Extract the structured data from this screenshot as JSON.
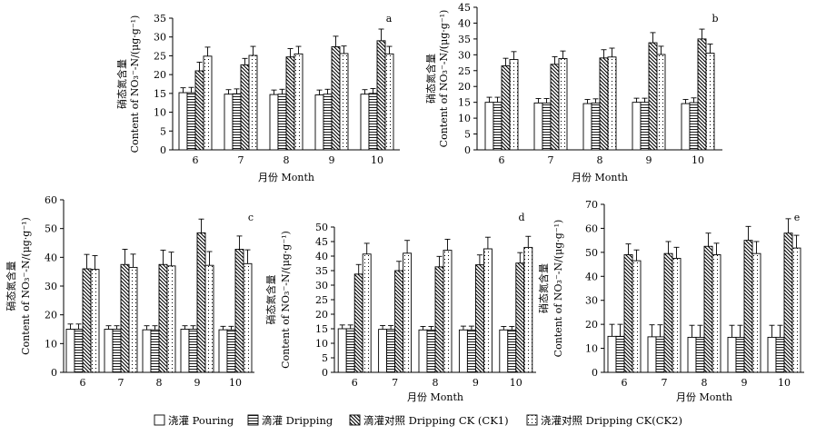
{
  "series_styles": [
    {
      "key": "pouring",
      "pattern": "none"
    },
    {
      "key": "dripping",
      "pattern": "hlines"
    },
    {
      "key": "ck1",
      "pattern": "diag"
    },
    {
      "key": "ck2",
      "pattern": "dots"
    }
  ],
  "legend": [
    {
      "key": "pouring",
      "label": "浇灌  Pouring"
    },
    {
      "key": "dripping",
      "label": "滴灌  Dripping"
    },
    {
      "key": "ck1",
      "label": "滴灌对照  Dripping CK (CK1)"
    },
    {
      "key": "ck2",
      "label": "浇灌对照 Dripping CK(CK2)"
    }
  ],
  "chart_data": [
    {
      "type": "bar",
      "panel_label": "a",
      "categories": [
        "6",
        "7",
        "8",
        "9",
        "10"
      ],
      "xlabel": "月份 Month",
      "ylabel_cn": "硝态氮含量",
      "ylabel_en": "Content of NO₃⁻-N/(μg·g⁻¹)",
      "ylim": [
        0,
        35
      ],
      "yticks": [
        0,
        5,
        10,
        15,
        20,
        25,
        30,
        35
      ],
      "series": [
        {
          "name": "Pouring",
          "values": [
            15.2,
            14.8,
            14.7,
            14.6,
            14.8
          ],
          "errors": [
            1.3,
            1.2,
            1.2,
            1.3,
            1.2
          ]
        },
        {
          "name": "Dripping",
          "values": [
            15.2,
            14.9,
            14.8,
            14.8,
            15.0
          ],
          "errors": [
            1.4,
            1.3,
            1.3,
            1.3,
            1.3
          ]
        },
        {
          "name": "Dripping CK (CK1)",
          "values": [
            21.0,
            22.6,
            24.7,
            27.4,
            29.0
          ],
          "errors": [
            2.3,
            1.7,
            2.2,
            2.8,
            3.1
          ]
        },
        {
          "name": "Dripping CK(CK2)",
          "values": [
            24.9,
            25.1,
            25.5,
            25.6,
            25.5
          ],
          "errors": [
            2.4,
            2.4,
            2.0,
            2.0,
            2.0
          ]
        }
      ]
    },
    {
      "type": "bar",
      "panel_label": "b",
      "categories": [
        "6",
        "7",
        "8",
        "9",
        "10"
      ],
      "xlabel": "月份 Month",
      "ylabel_cn": "硝态氮含量",
      "ylabel_en": "Content of NO₃⁻-N/(μg·g⁻¹)",
      "ylim": [
        0,
        45
      ],
      "yticks": [
        0,
        5,
        10,
        15,
        20,
        25,
        30,
        35,
        40,
        45
      ],
      "series": [
        {
          "name": "Pouring",
          "values": [
            15.0,
            14.8,
            14.6,
            15.0,
            14.6
          ],
          "errors": [
            1.6,
            1.4,
            1.3,
            1.3,
            1.3
          ]
        },
        {
          "name": "Dripping",
          "values": [
            15.0,
            14.8,
            14.8,
            15.0,
            14.9
          ],
          "errors": [
            1.6,
            1.4,
            1.3,
            1.3,
            1.5
          ]
        },
        {
          "name": "Dripping CK (CK1)",
          "values": [
            26.5,
            27.0,
            29.0,
            33.8,
            35.0
          ],
          "errors": [
            2.4,
            2.4,
            2.6,
            3.2,
            3.1
          ]
        },
        {
          "name": "Dripping CK(CK2)",
          "values": [
            28.5,
            28.8,
            29.3,
            30.1,
            30.5
          ],
          "errors": [
            2.5,
            2.4,
            2.8,
            2.6,
            2.9
          ]
        }
      ]
    },
    {
      "type": "bar",
      "panel_label": "c",
      "categories": [
        "6",
        "7",
        "8",
        "9",
        "10"
      ],
      "xlabel": "",
      "ylabel_cn": "硝态氮含量",
      "ylabel_en": "Content of NO₃⁻-N/(μg·g⁻¹)",
      "ylim": [
        0,
        60
      ],
      "yticks": [
        0,
        10,
        20,
        30,
        40,
        50,
        60
      ],
      "series": [
        {
          "name": "Pouring",
          "values": [
            15.0,
            15.0,
            14.8,
            15.0,
            14.8
          ],
          "errors": [
            1.8,
            1.2,
            1.4,
            1.2,
            1.2
          ]
        },
        {
          "name": "Dripping",
          "values": [
            15.0,
            15.0,
            14.8,
            15.0,
            14.8
          ],
          "errors": [
            1.8,
            1.2,
            1.4,
            1.2,
            1.2
          ]
        },
        {
          "name": "Dripping CK (CK1)",
          "values": [
            36.0,
            37.5,
            37.5,
            48.5,
            42.8
          ],
          "errors": [
            5.0,
            5.3,
            5.0,
            4.8,
            4.6
          ]
        },
        {
          "name": "Dripping CK(CK2)",
          "values": [
            35.8,
            36.5,
            37.0,
            37.2,
            37.8
          ],
          "errors": [
            4.8,
            4.6,
            4.8,
            4.8,
            4.8
          ]
        }
      ]
    },
    {
      "type": "bar",
      "panel_label": "d",
      "categories": [
        "6",
        "7",
        "8",
        "9",
        "10"
      ],
      "xlabel": "月份 Month",
      "ylabel_cn": "硝态氮含量",
      "ylabel_en": "Content of NO₃⁻-N/(μg·g⁻¹)",
      "ylim": [
        0,
        50
      ],
      "yticks": [
        0,
        5,
        10,
        15,
        20,
        25,
        30,
        35,
        40,
        45,
        50
      ],
      "series": [
        {
          "name": "Pouring",
          "values": [
            15.0,
            14.8,
            14.6,
            14.6,
            14.6
          ],
          "errors": [
            1.3,
            1.3,
            1.2,
            1.3,
            1.2
          ]
        },
        {
          "name": "Dripping",
          "values": [
            15.0,
            14.8,
            14.6,
            14.6,
            14.6
          ],
          "errors": [
            1.3,
            1.3,
            1.2,
            1.3,
            1.2
          ]
        },
        {
          "name": "Dripping CK (CK1)",
          "values": [
            33.8,
            35.0,
            36.3,
            37.0,
            37.6
          ],
          "errors": [
            3.3,
            3.2,
            3.6,
            3.4,
            3.6
          ]
        },
        {
          "name": "Dripping CK(CK2)",
          "values": [
            40.7,
            41.0,
            42.0,
            42.5,
            43.0
          ],
          "errors": [
            3.7,
            4.4,
            3.8,
            4.0,
            3.8
          ]
        }
      ]
    },
    {
      "type": "bar",
      "panel_label": "e",
      "categories": [
        "6",
        "7",
        "8",
        "9",
        "10"
      ],
      "xlabel": "月份 Month",
      "ylabel_cn": "硝态氮含量",
      "ylabel_en": "Content of NO₃⁻-N/(μg·g⁻¹)",
      "ylim": [
        0,
        70
      ],
      "yticks": [
        0,
        10,
        20,
        30,
        40,
        50,
        60,
        70
      ],
      "series": [
        {
          "name": "Pouring",
          "values": [
            15.0,
            14.8,
            14.6,
            14.6,
            14.6
          ],
          "errors": [
            5.0,
            5.0,
            5.0,
            5.0,
            5.0
          ]
        },
        {
          "name": "Dripping",
          "values": [
            15.0,
            14.8,
            14.6,
            14.6,
            14.6
          ],
          "errors": [
            5.0,
            5.0,
            5.0,
            5.0,
            5.0
          ]
        },
        {
          "name": "Dripping CK (CK1)",
          "values": [
            49.0,
            49.5,
            52.5,
            55.0,
            58.0
          ],
          "errors": [
            4.5,
            5.0,
            5.5,
            5.8,
            6.0
          ]
        },
        {
          "name": "Dripping CK(CK2)",
          "values": [
            46.5,
            47.5,
            49.0,
            49.5,
            51.8
          ],
          "errors": [
            4.5,
            4.6,
            4.8,
            5.0,
            5.3
          ]
        }
      ]
    }
  ]
}
